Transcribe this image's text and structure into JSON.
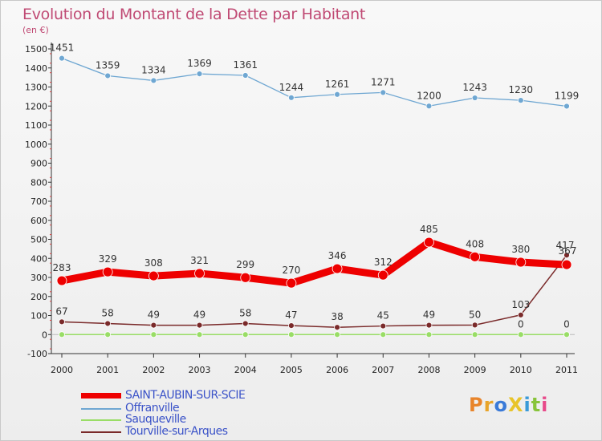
{
  "title": "Evolution du Montant de la Dette par Habitant",
  "unit_label": "(en €)",
  "logo": {
    "text": "ProXiti",
    "colors": [
      "#e8842a",
      "#e8a42a",
      "#3a7ad8",
      "#e8c42a",
      "#3a9ad8",
      "#88c43a",
      "#e84a8a"
    ]
  },
  "chart_data": {
    "type": "line",
    "title": "Evolution du Montant de la Dette par Habitant",
    "ylabel": "(en €)",
    "xlabel": "",
    "x": [
      "2000",
      "2001",
      "2002",
      "2003",
      "2004",
      "2005",
      "2006",
      "2007",
      "2008",
      "2009",
      "2010",
      "2011"
    ],
    "ylim": [
      -100,
      1500
    ],
    "yticks": [
      "-100",
      "0",
      "100",
      "200",
      "300",
      "400",
      "500",
      "600",
      "700",
      "800",
      "900",
      "1000",
      "1100",
      "1200",
      "1300",
      "1400",
      "1500"
    ],
    "grid": false,
    "legend_position": "bottom-left",
    "series": [
      {
        "name": "SAINT-AUBIN-SUR-SCIE",
        "color": "#ee0000",
        "values": [
          283,
          329,
          308,
          321,
          299,
          270,
          346,
          312,
          485,
          408,
          380,
          367
        ],
        "labels": [
          "283",
          "329",
          "308",
          "321",
          "299",
          "270",
          "346",
          "312",
          "485",
          "408",
          "380",
          "367"
        ]
      },
      {
        "name": "Offranville",
        "color": "#6fa7d2",
        "values": [
          1451,
          1359,
          1334,
          1369,
          1361,
          1244,
          1261,
          1271,
          1200,
          1243,
          1230,
          1199
        ],
        "labels": [
          "1451",
          "1359",
          "1334",
          "1369",
          "1361",
          "1244",
          "1261",
          "1271",
          "1200",
          "1243",
          "1230",
          "1199"
        ]
      },
      {
        "name": "Sauqueville",
        "color": "#99dd66",
        "values": [
          0,
          0,
          0,
          0,
          0,
          0,
          0,
          0,
          0,
          0,
          0,
          0
        ],
        "labels": [
          "",
          "",
          "",
          "",
          "",
          "",
          "",
          "",
          "",
          "",
          "0",
          "0"
        ]
      },
      {
        "name": "Tourville-sur-Arques",
        "color": "#7a2a2a",
        "values": [
          67,
          58,
          49,
          49,
          58,
          47,
          38,
          45,
          49,
          50,
          103,
          417
        ],
        "labels": [
          "67",
          "58",
          "49",
          "49",
          "58",
          "47",
          "38",
          "45",
          "49",
          "50",
          "103",
          "417"
        ]
      }
    ]
  }
}
